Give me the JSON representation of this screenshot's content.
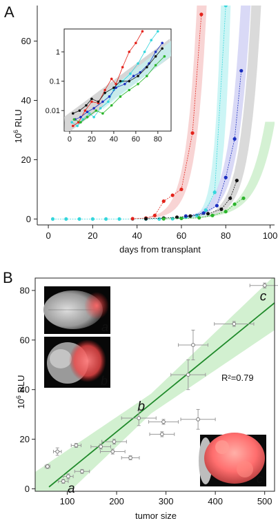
{
  "chart_data": [
    {
      "panel_label": "A",
      "type": "line",
      "title": "",
      "xlabel": "days from transplant",
      "ylabel_base": "10",
      "ylabel_exp": "6",
      "ylabel_unit": " RLU",
      "xlim": [
        -5,
        102
      ],
      "ylim": [
        -2,
        72
      ],
      "xticks": [
        0,
        20,
        40,
        60,
        80,
        100
      ],
      "yticks": [
        0,
        20,
        40,
        60
      ],
      "series": [
        {
          "color": "#35d6dc",
          "band": "#c3f3f3",
          "x": [
            2,
            8,
            14,
            20,
            26,
            32,
            38,
            44,
            50,
            56,
            62,
            67,
            71,
            75,
            80
          ],
          "y": [
            0,
            0,
            0,
            0,
            0,
            0,
            0,
            0,
            0,
            0.1,
            0.6,
            1.2,
            3.0,
            9.0,
            72.0
          ]
        },
        {
          "color": "#e3231b",
          "band": "#f7cccc",
          "x": [
            38,
            44,
            48,
            52,
            56,
            60,
            65,
            69
          ],
          "y": [
            0.1,
            0.3,
            1.2,
            6.0,
            8.0,
            10.0,
            29.0,
            69.0
          ]
        },
        {
          "color": "#1b2fc0",
          "band": "#d2d2f4",
          "x": [
            62,
            70,
            76,
            80,
            84,
            87
          ],
          "y": [
            1.0,
            2.0,
            4.5,
            14.0,
            27.0,
            50.0
          ]
        },
        {
          "color": "#111111",
          "band": "#d4d4d4",
          "x": [
            44,
            52,
            58,
            64,
            72,
            78,
            82,
            85
          ],
          "y": [
            0.1,
            0.3,
            0.6,
            1.0,
            1.8,
            3.3,
            7.0,
            13.0
          ]
        },
        {
          "color": "#2bb52b",
          "band": "#cdeecb",
          "x": [
            52,
            60,
            68,
            74,
            80,
            84,
            88
          ],
          "y": [
            0.05,
            0.2,
            0.4,
            1.2,
            2.5,
            5.0,
            7.0
          ]
        }
      ],
      "inset": {
        "xlim": [
          -5,
          92
        ],
        "ylim": [
          0.002,
          6
        ],
        "yscale": "log",
        "xticks": [
          0,
          20,
          40,
          60,
          80
        ],
        "yticks": [
          0.01,
          0.1,
          1
        ],
        "ytick_labels": [
          "0.01",
          "0.1",
          "1"
        ],
        "series": [
          {
            "color": "#35d6dc",
            "x": [
              2,
              7,
              12,
              18,
              22,
              28,
              35,
              40,
              48,
              55,
              62,
              68,
              74,
              80
            ],
            "y": [
              0.004,
              0.003,
              0.005,
              0.008,
              0.006,
              0.012,
              0.02,
              0.05,
              0.1,
              0.18,
              0.4,
              1.0,
              2.5,
              5.0
            ]
          },
          {
            "color": "#e3231b",
            "x": [
              3,
              8,
              14,
              20,
              26,
              32,
              38,
              42,
              48,
              54,
              60,
              66
            ],
            "y": [
              0.003,
              0.004,
              0.01,
              0.02,
              0.018,
              0.05,
              0.12,
              0.08,
              0.3,
              1.0,
              2.0,
              5.0
            ]
          },
          {
            "color": "#1b2fc0",
            "x": [
              5,
              10,
              16,
              22,
              30,
              36,
              42,
              50,
              58,
              64,
              72,
              78,
              84
            ],
            "y": [
              0.005,
              0.006,
              0.009,
              0.012,
              0.02,
              0.03,
              0.06,
              0.08,
              0.15,
              0.2,
              0.4,
              1.0,
              2.0
            ]
          },
          {
            "color": "#111111",
            "x": [
              3,
              9,
              15,
              20,
              26,
              32,
              40,
              46,
              54,
              62,
              70,
              78,
              84
            ],
            "y": [
              0.008,
              0.01,
              0.015,
              0.025,
              0.02,
              0.04,
              0.06,
              0.1,
              0.1,
              0.15,
              0.3,
              0.7,
              1.3
            ]
          },
          {
            "color": "#2bb52b",
            "x": [
              4,
              10,
              16,
              24,
              30,
              38,
              46,
              54,
              62,
              70,
              78,
              86
            ],
            "y": [
              0.005,
              0.004,
              0.006,
              0.01,
              0.008,
              0.015,
              0.03,
              0.05,
              0.08,
              0.15,
              0.35,
              0.7
            ]
          }
        ]
      }
    },
    {
      "panel_label": "B",
      "type": "scatter",
      "title": "",
      "xlabel": "tumor size",
      "ylabel_base": "10",
      "ylabel_exp": "6",
      "ylabel_unit": " RLU",
      "xlim": [
        35,
        520
      ],
      "ylim": [
        -1,
        85
      ],
      "xticks": [
        100,
        200,
        300,
        400,
        500
      ],
      "yticks": [
        0,
        20,
        40,
        60,
        80
      ],
      "fit": {
        "slope": 0.1625,
        "intercept": -9.5,
        "x_range": [
          63,
          520
        ],
        "label": "R²=0.79",
        "color": "#1f8a2a",
        "band": "#cdeecb"
      },
      "points": [
        {
          "x": 60,
          "y": 9.0,
          "xerr": 5,
          "yerr": 0.8
        },
        {
          "x": 80,
          "y": 15.0,
          "xerr": 8,
          "yerr": 1.5
        },
        {
          "x": 92,
          "y": 3.0,
          "xerr": 10,
          "yerr": 0.8
        },
        {
          "x": 102,
          "y": 5.0,
          "xerr": 10,
          "yerr": 1.0
        },
        {
          "x": 118,
          "y": 17.5,
          "xerr": 10,
          "yerr": 0.8
        },
        {
          "x": 130,
          "y": 7.0,
          "xerr": 15,
          "yerr": 0.8
        },
        {
          "x": 168,
          "y": 17.0,
          "xerr": 20,
          "yerr": 1.0
        },
        {
          "x": 195,
          "y": 19.0,
          "xerr": 25,
          "yerr": 1.0
        },
        {
          "x": 192,
          "y": 15.0,
          "xerr": 25,
          "yerr": 1.0
        },
        {
          "x": 228,
          "y": 12.5,
          "xerr": 18,
          "yerr": 0.8
        },
        {
          "x": 245,
          "y": 28.5,
          "xerr": 35,
          "yerr": 3.0
        },
        {
          "x": 292,
          "y": 22.0,
          "xerr": 25,
          "yerr": 1.0
        },
        {
          "x": 295,
          "y": 27.0,
          "xerr": 30,
          "yerr": 1.0
        },
        {
          "x": 345,
          "y": 46.0,
          "xerr": 35,
          "yerr": 6.0
        },
        {
          "x": 355,
          "y": 58.0,
          "xerr": 30,
          "yerr": 6.0
        },
        {
          "x": 365,
          "y": 28.0,
          "xerr": 35,
          "yerr": 4.0
        },
        {
          "x": 438,
          "y": 66.5,
          "xerr": 40,
          "yerr": 1.0
        },
        {
          "x": 500,
          "y": 82.0,
          "xerr": 30,
          "yerr": 1.0
        }
      ],
      "annotations": [
        {
          "text": "a",
          "x": 108,
          "y": -1.5
        },
        {
          "text": "b",
          "x": 250,
          "y": 31.5
        },
        {
          "text": "c",
          "x": 497,
          "y": 76
        }
      ],
      "images": [
        {
          "label": "a",
          "kind": "brain-top"
        },
        {
          "label": "b",
          "kind": "brain-tumor"
        },
        {
          "label": "c",
          "kind": "tumor-mass"
        }
      ]
    }
  ]
}
